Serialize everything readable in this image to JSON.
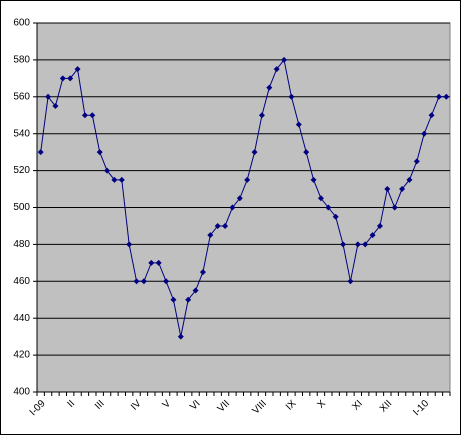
{
  "chart_data": {
    "type": "line",
    "categories": [
      "I-09",
      null,
      null,
      null,
      "II",
      null,
      null,
      null,
      "III",
      null,
      null,
      null,
      null,
      "IV",
      null,
      null,
      null,
      "V",
      null,
      null,
      null,
      "VI",
      null,
      null,
      null,
      "VII",
      null,
      null,
      null,
      null,
      "VIII",
      null,
      null,
      null,
      "IX",
      null,
      null,
      null,
      "X",
      null,
      null,
      null,
      null,
      "XI",
      null,
      null,
      null,
      "XII",
      null,
      null,
      null,
      null,
      "I-10",
      null,
      null,
      null
    ],
    "values": [
      530,
      560,
      555,
      570,
      570,
      575,
      550,
      550,
      530,
      520,
      515,
      515,
      480,
      460,
      460,
      470,
      470,
      460,
      450,
      430,
      450,
      455,
      465,
      485,
      490,
      490,
      500,
      505,
      515,
      530,
      550,
      565,
      575,
      580,
      560,
      545,
      530,
      515,
      505,
      500,
      495,
      480,
      460,
      480,
      480,
      485,
      490,
      510,
      500,
      510,
      515,
      525,
      540,
      550,
      560,
      560
    ],
    "color": "#000080",
    "ylim": [
      400,
      600
    ],
    "yticks": [
      400,
      420,
      440,
      460,
      480,
      500,
      520,
      540,
      560,
      580,
      600
    ],
    "grid": true
  }
}
